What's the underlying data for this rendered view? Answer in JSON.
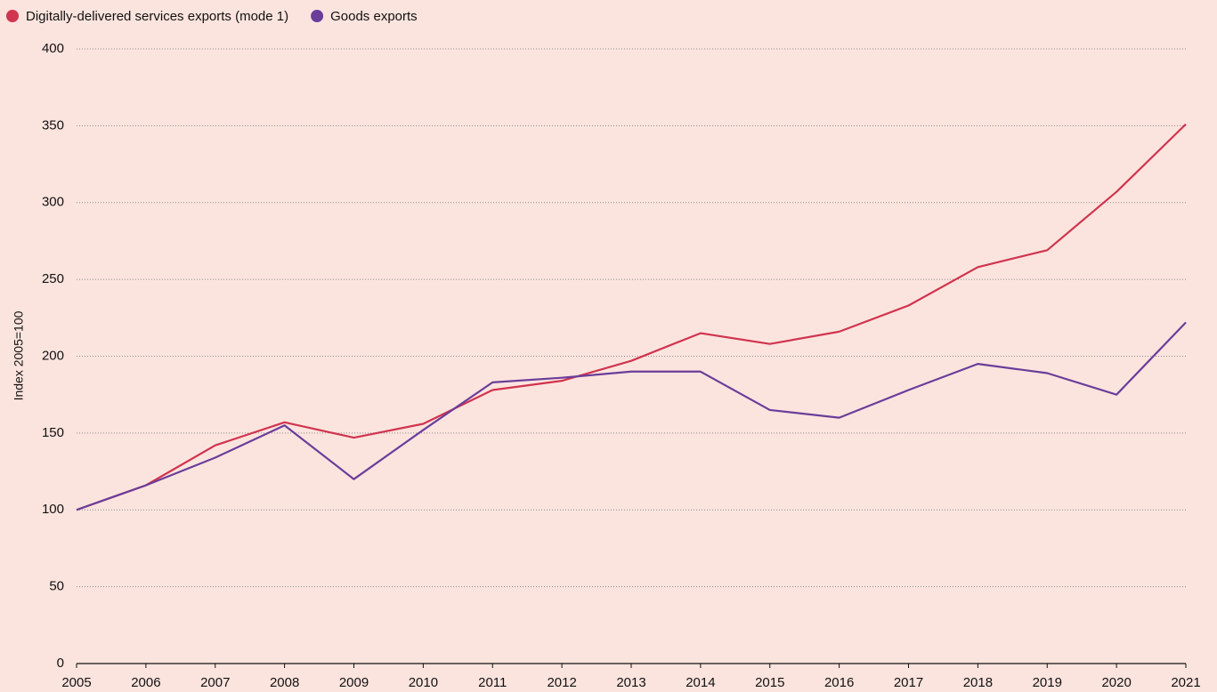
{
  "chart_data": {
    "type": "line",
    "y_label": "Index 2005=100",
    "x": [
      2005,
      2006,
      2007,
      2008,
      2009,
      2010,
      2011,
      2012,
      2013,
      2014,
      2015,
      2016,
      2017,
      2018,
      2019,
      2020,
      2021
    ],
    "xlim": [
      2005,
      2021
    ],
    "xticks": [
      2005,
      2006,
      2007,
      2008,
      2009,
      2010,
      2011,
      2012,
      2013,
      2014,
      2015,
      2016,
      2017,
      2018,
      2019,
      2020,
      2021
    ],
    "ylim": [
      0,
      400
    ],
    "yticks": [
      0,
      50,
      100,
      150,
      200,
      250,
      300,
      350,
      400
    ],
    "grid": true,
    "legend": "top-left",
    "series": [
      {
        "name": "Digitally-delivered services exports (mode 1)",
        "color": "#d0344f",
        "values": [
          100,
          116,
          142,
          157,
          147,
          156,
          178,
          184,
          197,
          215,
          208,
          216,
          233,
          258,
          269,
          307,
          351
        ]
      },
      {
        "name": "Goods exports",
        "color": "#6a3d9a",
        "values": [
          100,
          116,
          134,
          155,
          120,
          152,
          183,
          186,
          190,
          190,
          165,
          160,
          178,
          195,
          189,
          175,
          222
        ]
      }
    ]
  }
}
